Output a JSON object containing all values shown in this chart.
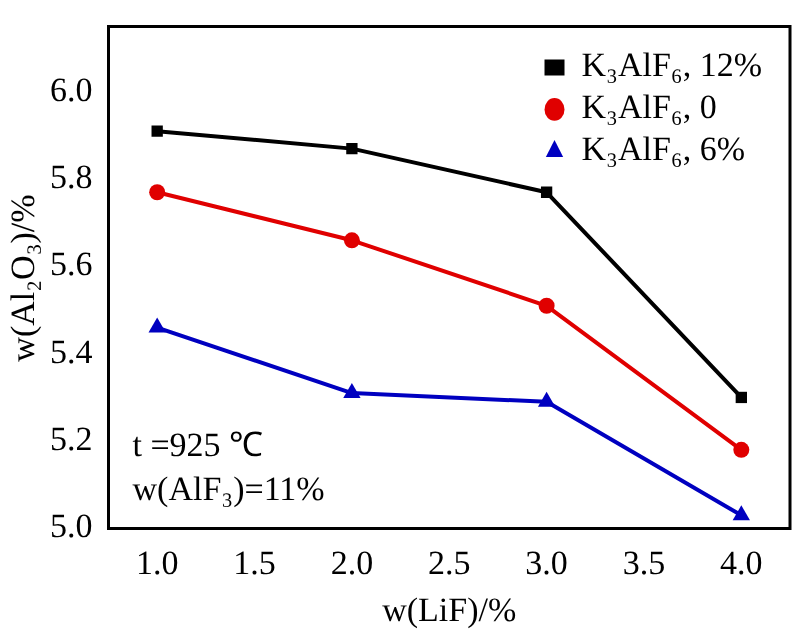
{
  "chart_data": {
    "type": "line",
    "xlabel": "w(LiF)/%",
    "ylabel": "w(Al₂O₃)/%",
    "x": [
      1.0,
      2.0,
      3.0,
      4.0
    ],
    "xlim": [
      0.75,
      4.25
    ],
    "xticks": [
      {
        "value": 1,
        "label": "1.0"
      },
      {
        "value": 1.5,
        "label": "1.5"
      },
      {
        "value": 2,
        "label": "2.0"
      },
      {
        "value": 2.5,
        "label": "2.5"
      },
      {
        "value": 3,
        "label": "3.0"
      },
      {
        "value": 3.5,
        "label": "3.5"
      },
      {
        "value": 4,
        "label": "4.0"
      }
    ],
    "ylim": [
      5.0,
      6.15
    ],
    "yticks": [
      {
        "value": 5,
        "label": "5.0"
      },
      {
        "value": 5.2,
        "label": "5.2"
      },
      {
        "value": 5.4,
        "label": "5.4"
      },
      {
        "value": 5.6,
        "label": "5.6"
      },
      {
        "value": 5.8,
        "label": "5.8"
      },
      {
        "value": 6,
        "label": "6.0"
      }
    ],
    "series": [
      {
        "name": "K₃AlF₆, 12%",
        "color": "#000000",
        "marker": "square",
        "values": [
          5.91,
          5.87,
          5.77,
          5.3
        ]
      },
      {
        "name": "K₃AlF₆, 0",
        "color": "#e00000",
        "marker": "circle",
        "values": [
          5.77,
          5.66,
          5.51,
          5.18
        ]
      },
      {
        "name": "K₃AlF₆, 6%",
        "color": "#0000c0",
        "marker": "triangle",
        "values": [
          5.46,
          5.31,
          5.29,
          5.03
        ]
      }
    ],
    "annotations": [
      "t =925 ℃",
      "w(AlF₃)=11%"
    ],
    "grid": false,
    "legend": "top right",
    "line_style": "solid"
  }
}
